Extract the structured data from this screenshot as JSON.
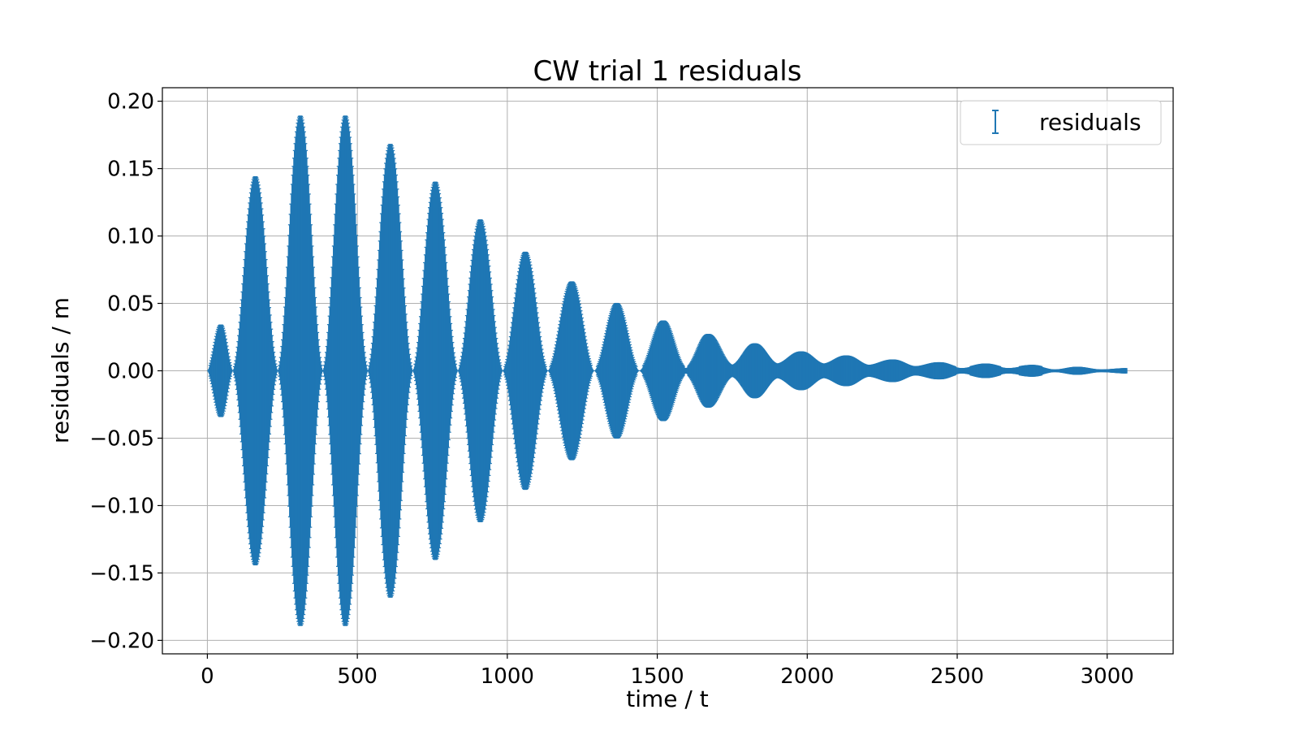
{
  "chart_data": {
    "type": "scatter",
    "title": "CW trial 1 residuals",
    "xlabel": "time / t",
    "ylabel": "residuals / m",
    "xlim": [
      -150,
      3220
    ],
    "ylim": [
      -0.21,
      0.21
    ],
    "x_ticks": [
      0,
      500,
      1000,
      1500,
      2000,
      2500,
      3000
    ],
    "x_tick_labels": [
      "0",
      "500",
      "1000",
      "1500",
      "2000",
      "2500",
      "3000"
    ],
    "y_ticks": [
      0.2,
      0.15,
      0.1,
      0.05,
      0.0,
      -0.05,
      -0.1,
      -0.15,
      -0.2
    ],
    "y_tick_labels": [
      "0.20",
      "0.15",
      "0.10",
      "0.05",
      "0.00",
      "−0.05",
      "−0.10",
      "−0.15",
      "−0.20"
    ],
    "grid": true,
    "legend_position": "top-right",
    "series": [
      {
        "name": "residuals",
        "color": "#1f77b4",
        "marker": "errorbar",
        "envelope_nodes_x": [
          0,
          45,
          85,
          160,
          235,
          310,
          385,
          460,
          535,
          610,
          685,
          760,
          835,
          910,
          985,
          1060,
          1135,
          1215,
          1290,
          1365,
          1440,
          1520,
          1595,
          1670,
          1750,
          1825,
          1900,
          1980,
          2055,
          2130,
          2205,
          2285,
          2360,
          2440,
          2515,
          2595,
          2670,
          2750,
          2825,
          2900,
          2980,
          3065
        ],
        "envelope_nodes_amplitude": [
          0.0,
          0.034,
          0.0,
          0.144,
          0.0,
          0.189,
          0.0,
          0.189,
          0.0,
          0.168,
          0.0,
          0.14,
          0.0,
          0.112,
          0.0,
          0.088,
          0.0,
          0.066,
          0.0,
          0.05,
          0.0,
          0.037,
          0.002,
          0.027,
          0.004,
          0.02,
          0.005,
          0.014,
          0.005,
          0.011,
          0.004,
          0.008,
          0.003,
          0.006,
          0.002,
          0.005,
          0.002,
          0.004,
          0.001,
          0.003,
          0.001,
          0.002
        ]
      }
    ]
  }
}
